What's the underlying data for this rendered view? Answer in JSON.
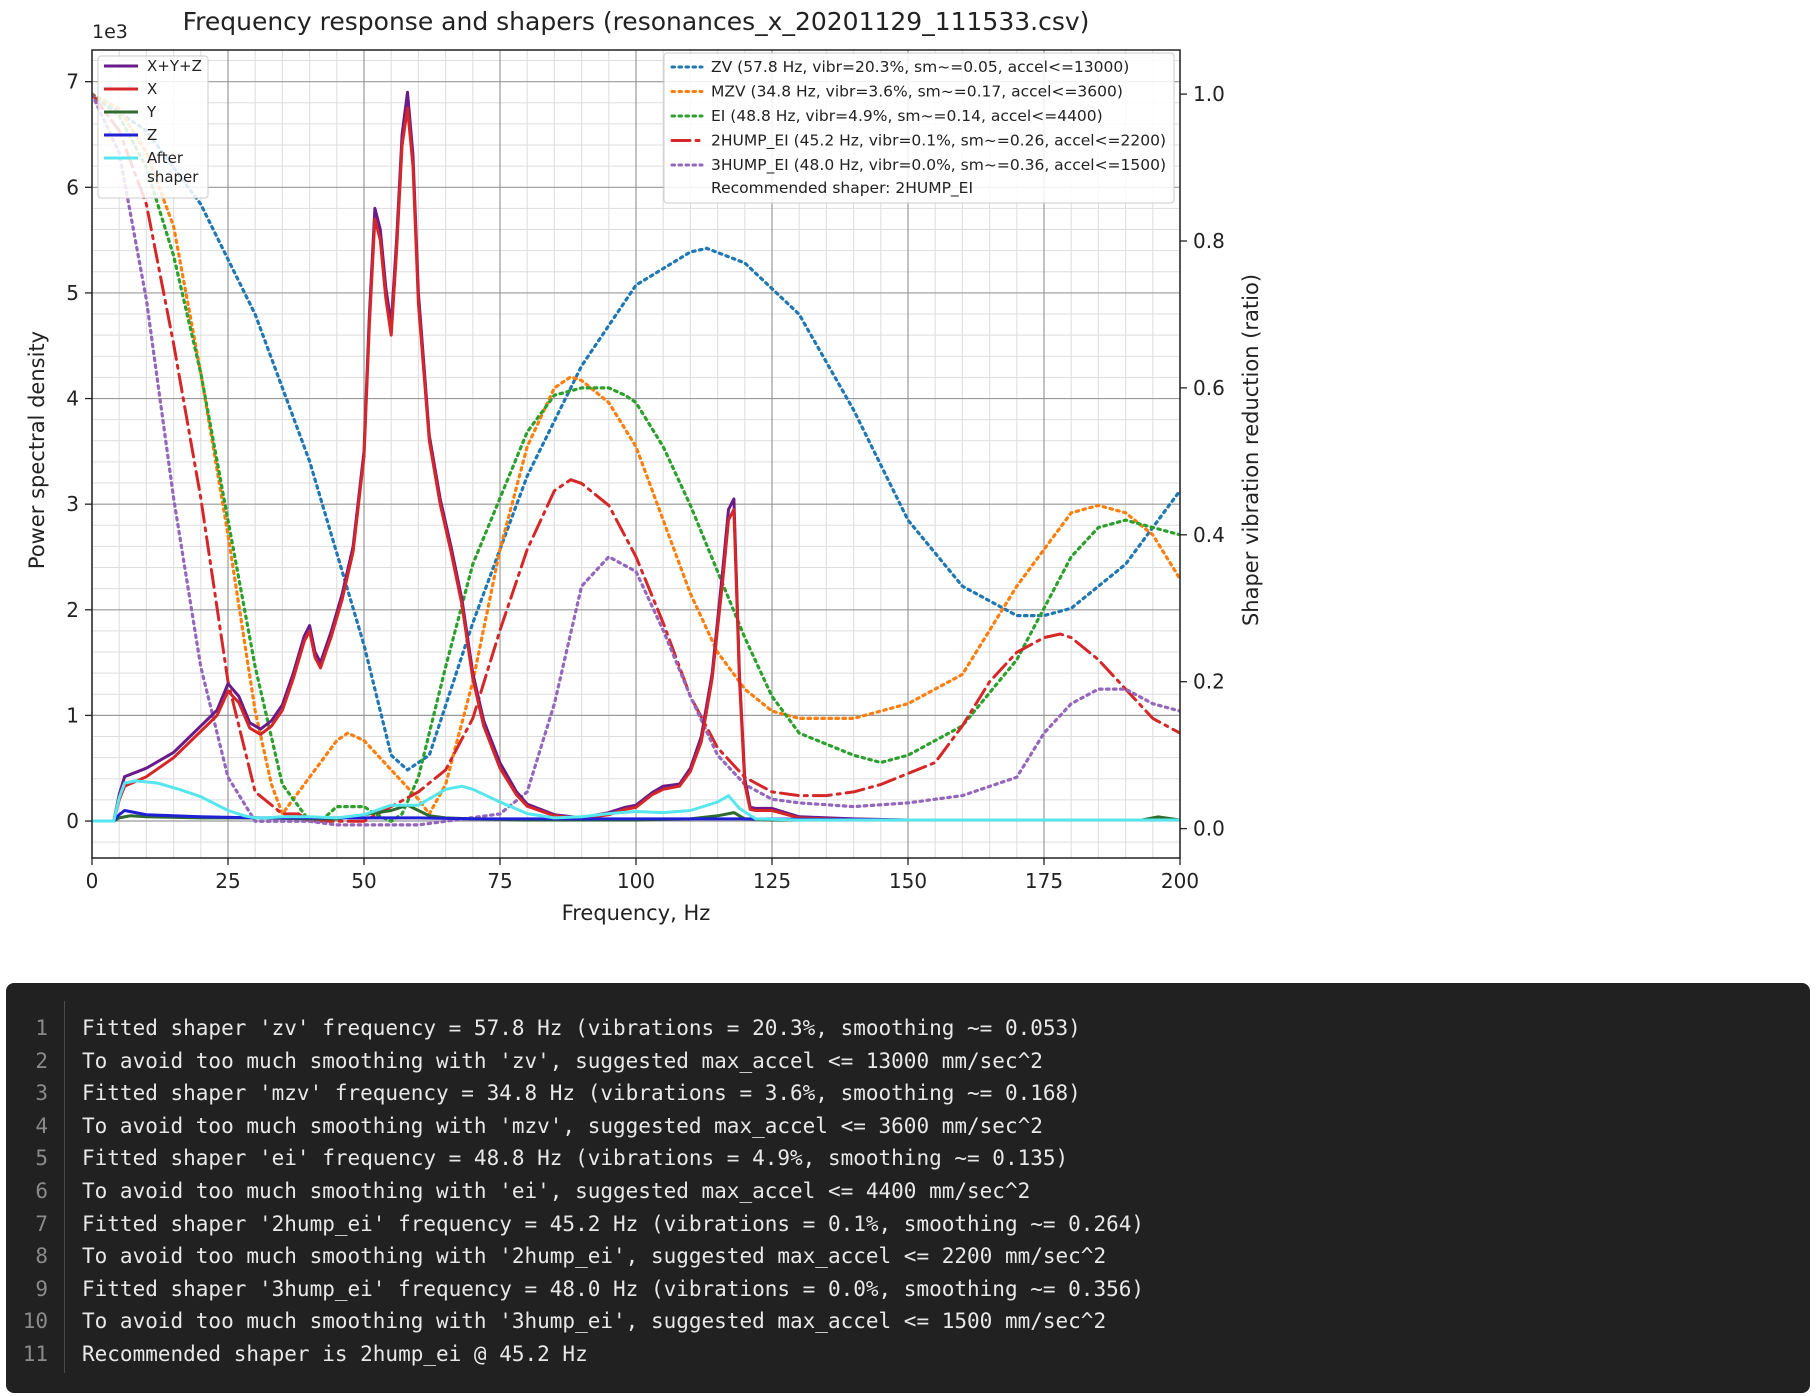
{
  "chart_data": {
    "type": "line",
    "title": "Frequency response and shapers (resonances_x_20201129_111533.csv)",
    "xlabel": "Frequency, Hz",
    "ylabel": "Power spectral density",
    "ylabel_right": "Shaper vibration reduction (ratio)",
    "y_offset_text": "1e3",
    "xlim": [
      0,
      200
    ],
    "ylim": [
      -0.35,
      7.3
    ],
    "ylim_right": [
      -0.04,
      1.06
    ],
    "x_ticks": [
      "0",
      "25",
      "50",
      "75",
      "100",
      "125",
      "150",
      "175",
      "200"
    ],
    "y_ticks": [
      "0",
      "1",
      "2",
      "3",
      "4",
      "5",
      "6",
      "7"
    ],
    "y_right_ticks": [
      "0.0",
      "0.2",
      "0.4",
      "0.6",
      "0.8",
      "1.0"
    ],
    "grid": true,
    "legend_left_placement": "top-left",
    "legend_right_placement": "top-right",
    "psd_series": [
      {
        "name": "X+Y+Z",
        "color": "#6a1b8a",
        "x": [
          0,
          4,
          5,
          6,
          10,
          15,
          20,
          23,
          25,
          27,
          29,
          31,
          33,
          35,
          37,
          39,
          40,
          41,
          42,
          43,
          44,
          46,
          48,
          50,
          51,
          52,
          53,
          54,
          55,
          56,
          57,
          58,
          59,
          60,
          62,
          64,
          66,
          68,
          70,
          72,
          75,
          78,
          80,
          85,
          90,
          95,
          98,
          100,
          103,
          105,
          108,
          110,
          112,
          114,
          116,
          117,
          118,
          119,
          120,
          121,
          122,
          125,
          130,
          140,
          150,
          175,
          200
        ],
        "y": [
          0,
          0,
          0.25,
          0.42,
          0.5,
          0.65,
          0.9,
          1.05,
          1.3,
          1.18,
          0.93,
          0.87,
          0.95,
          1.1,
          1.4,
          1.75,
          1.85,
          1.6,
          1.5,
          1.65,
          1.8,
          2.15,
          2.6,
          3.5,
          4.8,
          5.8,
          5.6,
          5.05,
          4.7,
          5.5,
          6.5,
          6.9,
          6.3,
          5,
          3.65,
          3.05,
          2.6,
          2.1,
          1.4,
          0.95,
          0.55,
          0.28,
          0.16,
          0.06,
          0.03,
          0.08,
          0.13,
          0.15,
          0.27,
          0.33,
          0.35,
          0.5,
          0.8,
          1.4,
          2.4,
          2.95,
          3.05,
          1.4,
          0.4,
          0.13,
          0.12,
          0.12,
          0.04,
          0.02,
          0.01,
          0.01,
          0.01
        ]
      },
      {
        "name": "X",
        "color": "#d62728",
        "x": [
          0,
          4,
          5,
          6,
          10,
          15,
          20,
          23,
          25,
          27,
          29,
          31,
          33,
          35,
          37,
          39,
          40,
          41,
          42,
          43,
          44,
          46,
          48,
          50,
          51,
          52,
          53,
          54,
          55,
          56,
          57,
          58,
          59,
          60,
          62,
          64,
          66,
          68,
          70,
          72,
          75,
          78,
          80,
          85,
          90,
          95,
          98,
          100,
          103,
          105,
          108,
          110,
          112,
          114,
          116,
          117,
          118,
          119,
          120,
          121,
          122,
          125,
          130,
          140,
          150,
          175,
          200
        ],
        "y": [
          0,
          0,
          0.2,
          0.33,
          0.42,
          0.6,
          0.85,
          1.0,
          1.23,
          1.12,
          0.88,
          0.82,
          0.9,
          1.05,
          1.35,
          1.7,
          1.8,
          1.55,
          1.45,
          1.6,
          1.75,
          2.1,
          2.55,
          3.45,
          4.7,
          5.7,
          5.5,
          4.95,
          4.6,
          5.4,
          6.4,
          6.75,
          6.2,
          4.9,
          3.6,
          3,
          2.55,
          2.05,
          1.35,
          0.9,
          0.5,
          0.25,
          0.14,
          0.05,
          0.02,
          0.06,
          0.11,
          0.13,
          0.25,
          0.3,
          0.33,
          0.47,
          0.75,
          1.35,
          2.3,
          2.85,
          2.95,
          1.35,
          0.35,
          0.11,
          0.1,
          0.1,
          0.03,
          0.01,
          0.01,
          0.01,
          0.01
        ]
      },
      {
        "name": "Y",
        "color": "#2e6b2e",
        "x": [
          0,
          4,
          5,
          7,
          10,
          20,
          30,
          40,
          45,
          50,
          55,
          58,
          60,
          62,
          65,
          70,
          80,
          90,
          100,
          110,
          115,
          118,
          120,
          125,
          150,
          175,
          193,
          196,
          200
        ],
        "y": [
          0,
          0,
          0.03,
          0.05,
          0.04,
          0.03,
          0.03,
          0.02,
          0.02,
          0.06,
          0.1,
          0.15,
          0.1,
          0.05,
          0.03,
          0.02,
          0.01,
          0.01,
          0.01,
          0.02,
          0.05,
          0.08,
          0.02,
          0.01,
          0.01,
          0.01,
          0.01,
          0.04,
          0.01
        ]
      },
      {
        "name": "Z",
        "color": "#1f1fd6",
        "x": [
          0,
          4,
          5,
          6,
          8,
          10,
          15,
          20,
          30,
          40,
          50,
          60,
          70,
          80,
          100,
          120,
          150,
          200
        ],
        "y": [
          0,
          0,
          0.06,
          0.1,
          0.08,
          0.06,
          0.05,
          0.04,
          0.03,
          0.03,
          0.03,
          0.03,
          0.02,
          0.02,
          0.02,
          0.02,
          0.01,
          0.01
        ]
      },
      {
        "name": "After\nshaper",
        "color": "#55e6ee",
        "x": [
          0,
          4,
          5,
          6,
          8,
          12,
          16,
          20,
          25,
          28,
          30,
          32,
          35,
          40,
          45,
          50,
          55,
          60,
          63,
          65,
          68,
          70,
          75,
          80,
          85,
          90,
          95,
          100,
          105,
          110,
          115,
          117,
          119,
          122,
          130,
          150,
          200
        ],
        "y": [
          0,
          0,
          0.22,
          0.36,
          0.38,
          0.36,
          0.3,
          0.23,
          0.1,
          0.05,
          0.03,
          0.03,
          0.04,
          0.04,
          0.03,
          0.06,
          0.15,
          0.15,
          0.24,
          0.3,
          0.33,
          0.3,
          0.18,
          0.07,
          0.03,
          0.04,
          0.07,
          0.09,
          0.08,
          0.1,
          0.18,
          0.24,
          0.12,
          0.02,
          0.01,
          0.01,
          0.01
        ]
      }
    ],
    "shaper_series": [
      {
        "name": "ZV (57.8 Hz, vibr=20.3%, sm~=0.05, accel<=13000)",
        "color": "#1f77b4",
        "style": "dotted",
        "x": [
          0,
          10,
          20,
          30,
          40,
          50,
          55,
          58,
          62,
          70,
          80,
          90,
          100,
          110,
          113,
          120,
          130,
          140,
          150,
          160,
          170,
          175,
          180,
          190,
          200
        ],
        "y": [
          1.0,
          0.95,
          0.85,
          0.7,
          0.5,
          0.25,
          0.1,
          0.08,
          0.1,
          0.28,
          0.48,
          0.63,
          0.74,
          0.785,
          0.79,
          0.77,
          0.7,
          0.57,
          0.42,
          0.33,
          0.29,
          0.29,
          0.3,
          0.36,
          0.46
        ]
      },
      {
        "name": "MZV (34.8 Hz, vibr=3.6%, sm~=0.17, accel<=3600)",
        "color": "#ff7f0e",
        "style": "dotted",
        "x": [
          0,
          5,
          10,
          15,
          20,
          25,
          30,
          33,
          35,
          40,
          45,
          47,
          50,
          55,
          60,
          62,
          65,
          70,
          75,
          80,
          85,
          88,
          90,
          95,
          100,
          105,
          110,
          115,
          120,
          125,
          130,
          140,
          150,
          160,
          170,
          180,
          185,
          190,
          195,
          200
        ],
        "y": [
          1.0,
          0.98,
          0.92,
          0.82,
          0.62,
          0.4,
          0.16,
          0.06,
          0.02,
          0.07,
          0.12,
          0.13,
          0.12,
          0.08,
          0.04,
          0.02,
          0.06,
          0.2,
          0.38,
          0.52,
          0.6,
          0.615,
          0.61,
          0.58,
          0.52,
          0.42,
          0.32,
          0.24,
          0.19,
          0.16,
          0.15,
          0.15,
          0.17,
          0.21,
          0.33,
          0.43,
          0.44,
          0.43,
          0.4,
          0.34
        ]
      },
      {
        "name": "EI (48.8 Hz, vibr=4.9%, sm~=0.14, accel<=4400)",
        "color": "#2ca02c",
        "style": "dotted",
        "x": [
          0,
          5,
          10,
          15,
          20,
          25,
          30,
          35,
          40,
          42,
          45,
          48,
          50,
          52,
          55,
          57,
          60,
          65,
          70,
          75,
          80,
          85,
          90,
          95,
          98,
          100,
          105,
          110,
          115,
          120,
          125,
          130,
          140,
          145,
          150,
          160,
          170,
          175,
          180,
          185,
          190,
          195,
          200
        ],
        "y": [
          1.0,
          0.97,
          0.9,
          0.78,
          0.62,
          0.42,
          0.22,
          0.06,
          0.01,
          0.01,
          0.03,
          0.03,
          0.03,
          0.02,
          0.01,
          0.02,
          0.07,
          0.22,
          0.36,
          0.45,
          0.54,
          0.59,
          0.6,
          0.6,
          0.59,
          0.58,
          0.52,
          0.44,
          0.35,
          0.26,
          0.18,
          0.13,
          0.1,
          0.09,
          0.1,
          0.14,
          0.23,
          0.3,
          0.37,
          0.41,
          0.42,
          0.41,
          0.4
        ]
      },
      {
        "name": "2HUMP_EI (45.2 Hz, vibr=0.1%, sm~=0.26, accel<=2200)",
        "color": "#d62728",
        "style": "dashdot",
        "x": [
          0,
          5,
          10,
          15,
          20,
          25,
          30,
          35,
          38,
          40,
          45,
          50,
          55,
          60,
          65,
          70,
          75,
          80,
          85,
          88,
          90,
          95,
          100,
          105,
          110,
          115,
          120,
          125,
          130,
          135,
          140,
          145,
          150,
          155,
          160,
          165,
          170,
          175,
          178,
          180,
          185,
          190,
          195,
          200
        ],
        "y": [
          1.0,
          0.95,
          0.85,
          0.66,
          0.45,
          0.2,
          0.05,
          0.02,
          0.02,
          0.01,
          0.01,
          0.01,
          0.03,
          0.05,
          0.08,
          0.15,
          0.27,
          0.38,
          0.46,
          0.475,
          0.47,
          0.44,
          0.37,
          0.28,
          0.18,
          0.11,
          0.07,
          0.05,
          0.045,
          0.045,
          0.05,
          0.06,
          0.075,
          0.09,
          0.14,
          0.2,
          0.24,
          0.26,
          0.265,
          0.26,
          0.23,
          0.19,
          0.15,
          0.13
        ]
      },
      {
        "name": "3HUMP_EI (48.0 Hz, vibr=0.0%, sm~=0.36, accel<=1500)",
        "color": "#9467bd",
        "style": "dotted",
        "x": [
          0,
          5,
          10,
          15,
          20,
          25,
          30,
          35,
          40,
          45,
          50,
          55,
          60,
          65,
          70,
          75,
          80,
          85,
          90,
          95,
          100,
          105,
          110,
          115,
          120,
          125,
          130,
          140,
          150,
          160,
          170,
          175,
          180,
          185,
          190,
          195,
          200
        ],
        "y": [
          1.0,
          0.92,
          0.72,
          0.45,
          0.22,
          0.07,
          0.01,
          0.01,
          0.01,
          0.005,
          0.005,
          0.005,
          0.005,
          0.01,
          0.015,
          0.02,
          0.05,
          0.17,
          0.33,
          0.37,
          0.35,
          0.27,
          0.18,
          0.1,
          0.06,
          0.04,
          0.035,
          0.03,
          0.035,
          0.045,
          0.07,
          0.13,
          0.17,
          0.19,
          0.19,
          0.17,
          0.16
        ]
      }
    ],
    "recommended_text": "Recommended shaper: 2HUMP_EI"
  },
  "code_block": {
    "lines": [
      {
        "n": "1",
        "text": "Fitted shaper 'zv' frequency = 57.8 Hz (vibrations = 20.3%, smoothing ~= 0.053)"
      },
      {
        "n": "2",
        "text": "To avoid too much smoothing with 'zv', suggested max_accel <= 13000 mm/sec^2"
      },
      {
        "n": "3",
        "text": "Fitted shaper 'mzv' frequency = 34.8 Hz (vibrations = 3.6%, smoothing ~= 0.168)"
      },
      {
        "n": "4",
        "text": "To avoid too much smoothing with 'mzv', suggested max_accel <= 3600 mm/sec^2"
      },
      {
        "n": "5",
        "text": "Fitted shaper 'ei' frequency = 48.8 Hz (vibrations = 4.9%, smoothing ~= 0.135)"
      },
      {
        "n": "6",
        "text": "To avoid too much smoothing with 'ei', suggested max_accel <= 4400 mm/sec^2"
      },
      {
        "n": "7",
        "text": "Fitted shaper '2hump_ei' frequency = 45.2 Hz (vibrations = 0.1%, smoothing ~= 0.264)"
      },
      {
        "n": "8",
        "text": "To avoid too much smoothing with '2hump_ei', suggested max_accel <= 2200 mm/sec^2"
      },
      {
        "n": "9",
        "text": "Fitted shaper '3hump_ei' frequency = 48.0 Hz (vibrations = 0.0%, smoothing ~= 0.356)"
      },
      {
        "n": "10",
        "text": "To avoid too much smoothing with '3hump_ei', suggested max_accel <= 1500 mm/sec^2"
      },
      {
        "n": "11",
        "text": "Recommended shaper is 2hump_ei @ 45.2 Hz"
      }
    ]
  }
}
